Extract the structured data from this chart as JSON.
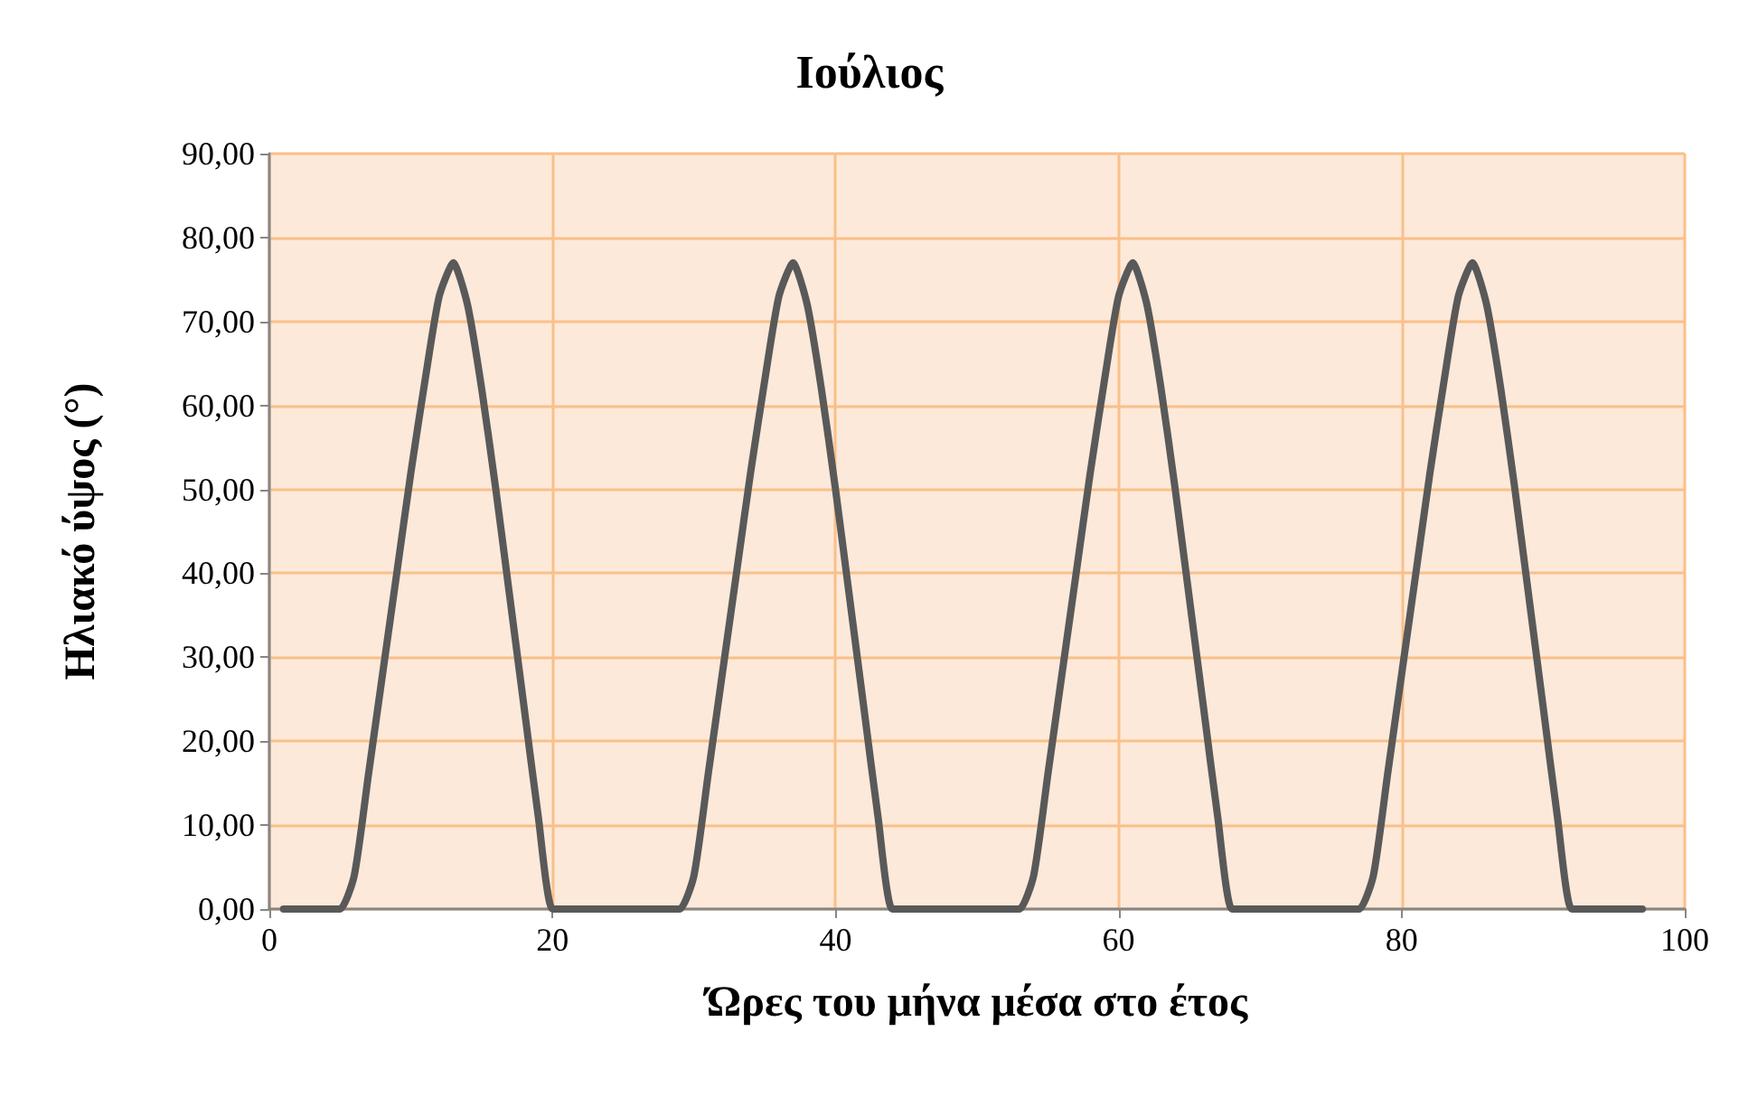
{
  "chart_data": {
    "type": "line",
    "title": "Ιούλιος",
    "xlabel": "Ώρες του μήνα μέσα στο έτος",
    "ylabel": "Ηλιακό ύψος (°)",
    "x": [
      1,
      2,
      3,
      4,
      5,
      6,
      7,
      8,
      9,
      10,
      11,
      12,
      13,
      14,
      15,
      16,
      17,
      18,
      19,
      20,
      21,
      22,
      23,
      24,
      25,
      26,
      27,
      28,
      29,
      30,
      31,
      32,
      33,
      34,
      35,
      36,
      37,
      38,
      39,
      40,
      41,
      42,
      43,
      44,
      45,
      46,
      47,
      48,
      49,
      50,
      51,
      52,
      53,
      54,
      55,
      56,
      57,
      58,
      59,
      60,
      61,
      62,
      63,
      64,
      65,
      66,
      67,
      68,
      69,
      70,
      71,
      72,
      73,
      74,
      75,
      76,
      77,
      78,
      79,
      80,
      81,
      82,
      83,
      84,
      85,
      86,
      87,
      88,
      89,
      90,
      91,
      92,
      93,
      94,
      95,
      96,
      97
    ],
    "series": [
      {
        "color": "#595959",
        "values": [
          0,
          0,
          0,
          0,
          0,
          4,
          16,
          28,
          40,
          52,
          63,
          73,
          77,
          72,
          62,
          50,
          37,
          24,
          11,
          0,
          0,
          0,
          0,
          0,
          0,
          0,
          0,
          0,
          0,
          4,
          16,
          28,
          40,
          52,
          63,
          73,
          77,
          72,
          62,
          50,
          37,
          24,
          11,
          0,
          0,
          0,
          0,
          0,
          0,
          0,
          0,
          0,
          0,
          4,
          16,
          28,
          40,
          52,
          63,
          73,
          77,
          72,
          62,
          50,
          37,
          24,
          11,
          0,
          0,
          0,
          0,
          0,
          0,
          0,
          0,
          0,
          0,
          4,
          16,
          28,
          40,
          52,
          63,
          73,
          77,
          72,
          62,
          50,
          37,
          24,
          11,
          0,
          0,
          0,
          0,
          0,
          0
        ]
      }
    ],
    "xlim": [
      0,
      100
    ],
    "xticks": [
      0,
      20,
      40,
      60,
      80,
      100
    ],
    "ylim": [
      0,
      90
    ],
    "yticks": [
      {
        "value": 0,
        "label": "0,00"
      },
      {
        "value": 10,
        "label": "10,00"
      },
      {
        "value": 20,
        "label": "20,00"
      },
      {
        "value": 30,
        "label": "30,00"
      },
      {
        "value": 40,
        "label": "40,00"
      },
      {
        "value": 50,
        "label": "50,00"
      },
      {
        "value": 60,
        "label": "60,00"
      },
      {
        "value": 70,
        "label": "70,00"
      },
      {
        "value": 80,
        "label": "80,00"
      },
      {
        "value": 90,
        "label": "90,00"
      }
    ],
    "grid": true,
    "marker": "none",
    "line_style": "solid"
  }
}
